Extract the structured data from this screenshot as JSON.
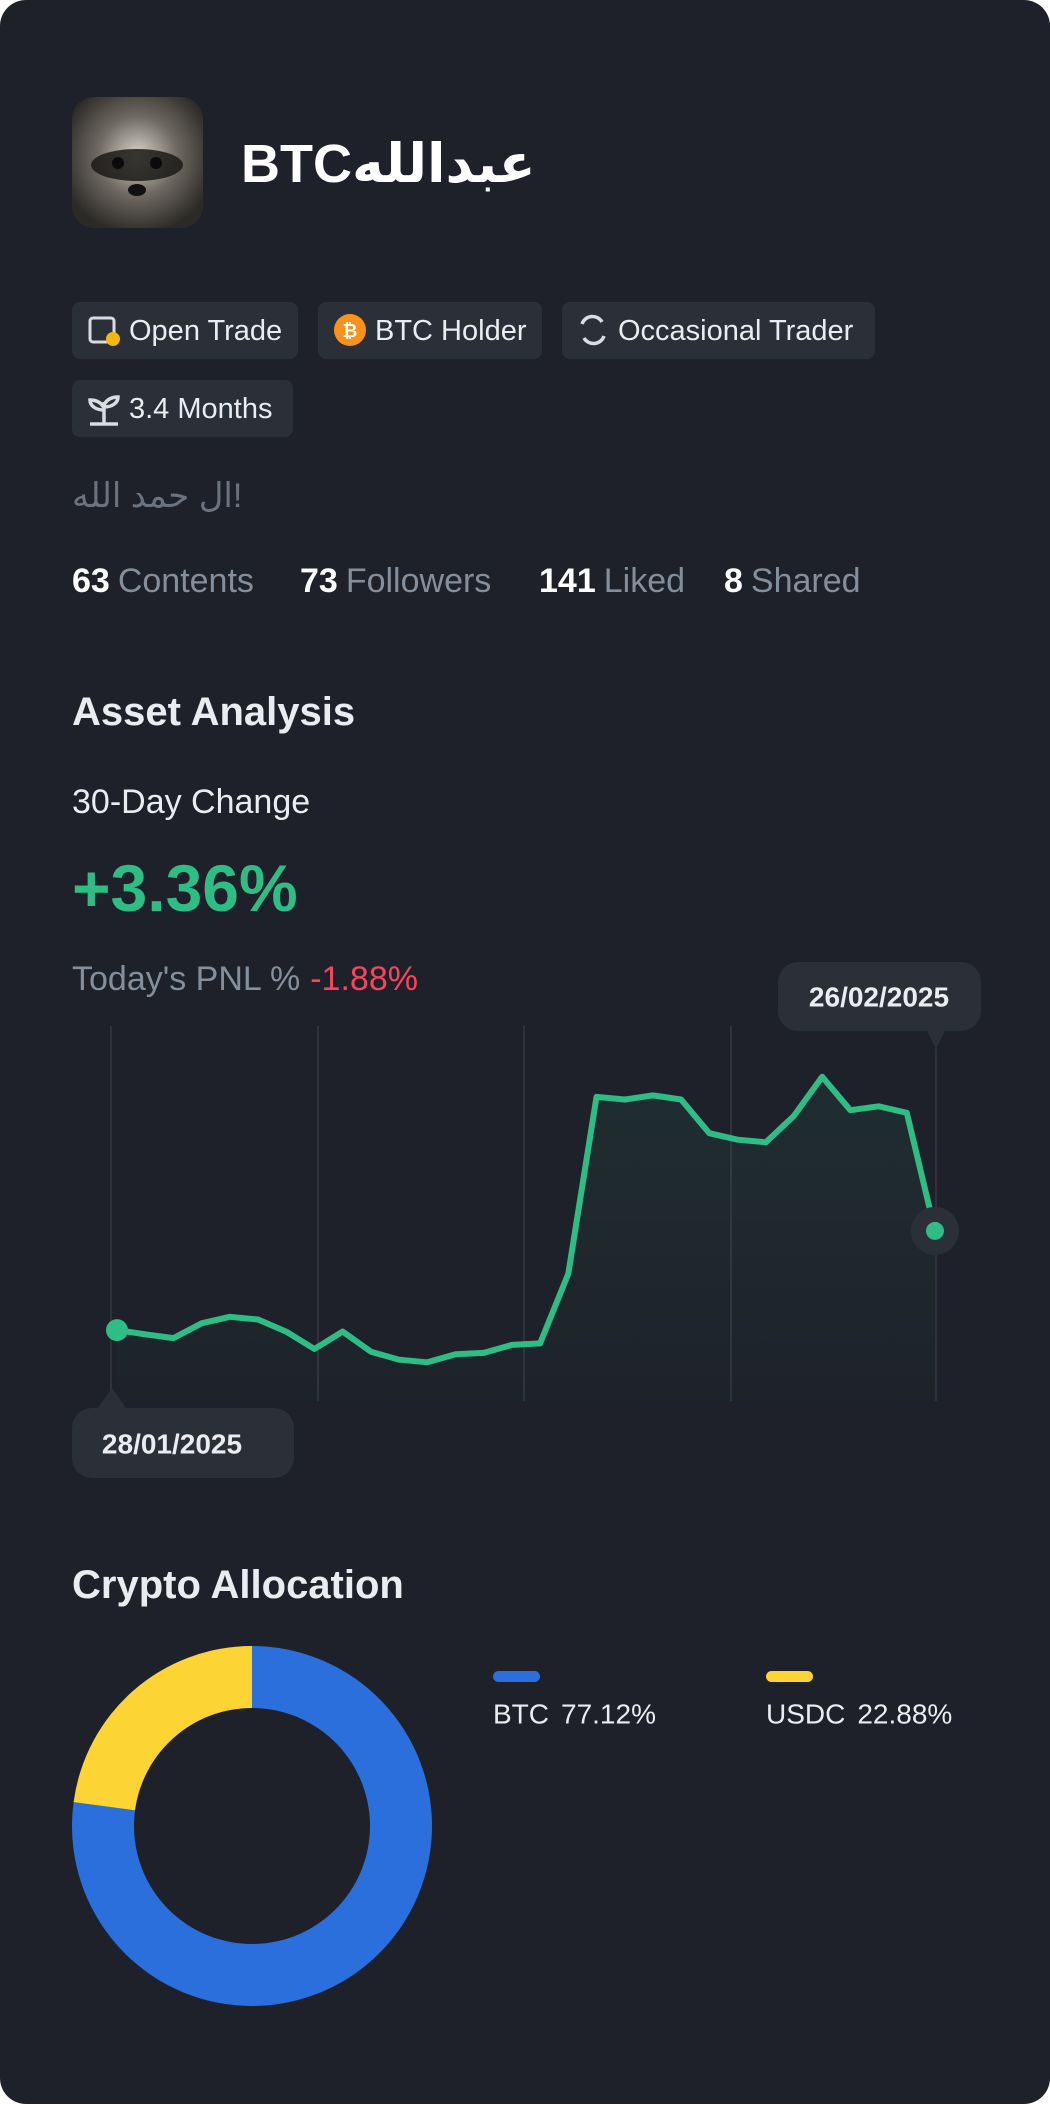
{
  "profile": {
    "name": "BTCعبدالله",
    "tags": [
      "Open Trade",
      "BTC Holder",
      "Occasional Trader",
      "3.4 Months"
    ],
    "bio": "ال حمد الله!",
    "stats": [
      {
        "value": 63,
        "label": "Contents"
      },
      {
        "value": 73,
        "label": "Followers"
      },
      {
        "value": 141,
        "label": "Liked"
      },
      {
        "value": 8,
        "label": "Shared"
      }
    ]
  },
  "asset_analysis": {
    "title": "Asset Analysis",
    "change_label": "30-Day Change",
    "change": "+3.36%",
    "pnl_label": "Today's PNL %",
    "pnl": "-1.88%"
  },
  "chart_data": [
    {
      "type": "line",
      "categories": [
        "28/01/2025",
        null,
        null,
        null,
        null,
        null,
        null,
        null,
        null,
        null,
        null,
        null,
        null,
        null,
        null,
        null,
        null,
        null,
        null,
        null,
        null,
        null,
        null,
        null,
        null,
        null,
        null,
        null,
        null,
        "26/02/2025"
      ],
      "values": [
        0,
        -0.14,
        -0.27,
        0.23,
        0.45,
        0.36,
        -0.05,
        -0.64,
        -0.05,
        -0.73,
        -1.0,
        -1.09,
        -0.82,
        -0.77,
        -0.5,
        -0.45,
        1.91,
        7.9,
        7.81,
        7.95,
        7.81,
        6.67,
        6.45,
        6.36,
        7.26,
        8.58,
        7.45,
        7.58,
        7.36,
        3.36
      ],
      "color": "#2ebd85",
      "ylim": [
        -2.4,
        10.3
      ]
    },
    {
      "type": "pie",
      "title": "Crypto Allocation",
      "categories": [
        "BTC",
        "USDC"
      ],
      "values": [
        77.12,
        22.88
      ],
      "value_labels": [
        "77.12%",
        "22.88%"
      ],
      "colors": [
        "#2a6fdb",
        "#fcd535"
      ],
      "donut": true
    }
  ]
}
